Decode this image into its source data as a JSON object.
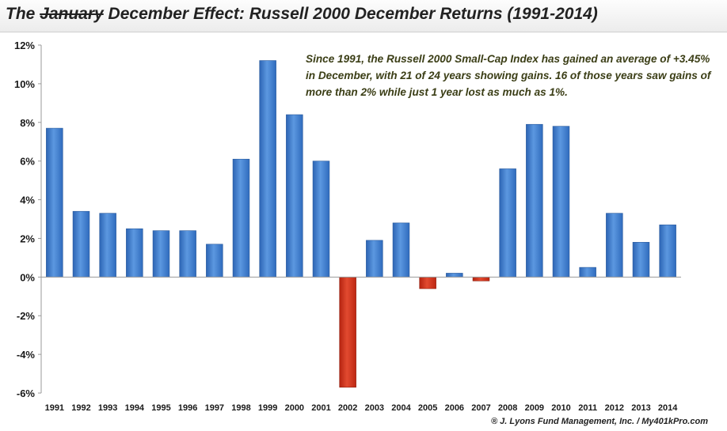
{
  "title": {
    "prefix": "The ",
    "struck": "January",
    "rest": " December Effect: Russell 2000 December Returns (1991-2014)"
  },
  "annotation": "Since 1991, the Russell 2000 Small-Cap Index has gained an average of +3.45% in December, with 21 of 24 years showing gains. 16 of those years saw gains of more than 2% while just 1 year lost as much as 1%.",
  "credit": "® J. Lyons Fund Management, Inc. / My401kPro.com",
  "colors": {
    "positive": "#3f7fd0",
    "negative": "#d9321c"
  },
  "chart_data": {
    "type": "bar",
    "categories": [
      "1991",
      "1992",
      "1993",
      "1994",
      "1995",
      "1996",
      "1997",
      "1998",
      "1999",
      "2000",
      "2001",
      "2002",
      "2003",
      "2004",
      "2005",
      "2006",
      "2007",
      "2008",
      "2009",
      "2010",
      "2011",
      "2012",
      "2013",
      "2014"
    ],
    "values": [
      7.7,
      3.4,
      3.3,
      2.5,
      2.4,
      2.4,
      1.7,
      6.1,
      11.2,
      8.4,
      6.0,
      -5.7,
      1.9,
      2.8,
      -0.6,
      0.2,
      -0.2,
      5.6,
      7.9,
      7.8,
      0.5,
      3.3,
      1.8,
      2.7
    ],
    "ylim": [
      -6,
      12
    ],
    "yticks": [
      12,
      10,
      8,
      6,
      4,
      2,
      0,
      -2,
      -4,
      -6
    ],
    "ytick_labels": [
      "12%",
      "10%",
      "8%",
      "6%",
      "4%",
      "2%",
      "0%",
      "-2%",
      "-4%",
      "-6%"
    ],
    "grid": false,
    "legend": false
  }
}
